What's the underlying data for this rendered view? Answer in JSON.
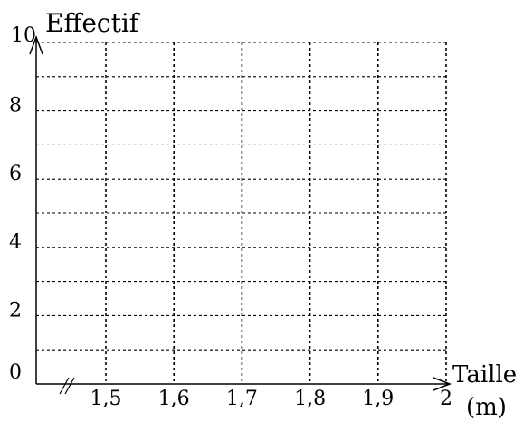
{
  "chart_data": {
    "type": "bar",
    "title": "",
    "xlabel": "Taille\n(m)",
    "ylabel": "Effectif",
    "x_axis": {
      "ticks": [
        1.5,
        1.6,
        1.7,
        1.8,
        1.9,
        2.0
      ],
      "tick_labels": [
        "1,5",
        "1,6",
        "1,7",
        "1,8",
        "1,9",
        "2"
      ],
      "range": [
        1.4,
        2.0
      ],
      "axis_break": true
    },
    "y_axis": {
      "ticks": [
        0,
        2,
        4,
        6,
        8,
        10
      ],
      "tick_labels": [
        "0",
        "2",
        "4",
        "6",
        "8",
        "10"
      ],
      "range": [
        0,
        10
      ],
      "minor_step": 1
    },
    "grid": true,
    "series": []
  },
  "axis_labels": {
    "y_title": "Effectif",
    "x_title_line1": "Taille",
    "x_title_line2": "(m)"
  }
}
